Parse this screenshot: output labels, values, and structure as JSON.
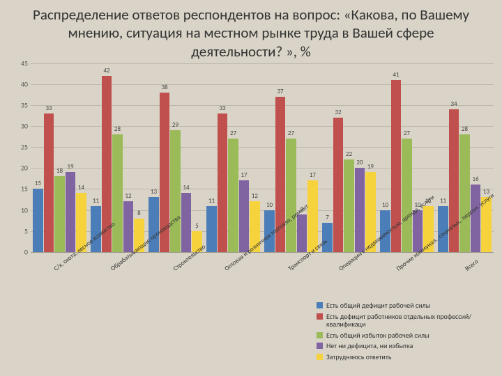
{
  "title": "Распределение ответов респондентов на вопрос: «Какова, по Вашему мнению, ситуация на местном рынке труда в Вашей сфере деятельности? », %",
  "chart": {
    "type": "bar",
    "ylim": [
      0,
      45
    ],
    "ytick_step": 5,
    "background": "#d9d4c7",
    "grid_color": "#bdb8a8",
    "series_colors": [
      "#4b7db8",
      "#c0504d",
      "#9bbb59",
      "#8064a2",
      "#f6d33c"
    ],
    "categories": [
      "С/х, охота, лесное хозяйство",
      "Обрабатывающие производства",
      "Строительство",
      "Оптовая и розничная торговля, ремонт",
      "Транспорт и связь",
      "Операции с недвижимостью, аренда, услуги",
      "Прочие коммунал., социальн., персон. услуги",
      "Всего"
    ],
    "data": [
      [
        15,
        33,
        18,
        19,
        14
      ],
      [
        11,
        42,
        28,
        12,
        8
      ],
      [
        13,
        38,
        29,
        14,
        5
      ],
      [
        11,
        33,
        27,
        17,
        12
      ],
      [
        10,
        37,
        27,
        9,
        17
      ],
      [
        7,
        32,
        22,
        20,
        19
      ],
      [
        10,
        41,
        27,
        10,
        11
      ],
      [
        11,
        34,
        28,
        16,
        13
      ]
    ],
    "legend": [
      "Есть общий дефицит рабочей силы",
      "Есть дефицит работников отдельных профессий/квалификаци",
      "Есть общий избыток рабочей силы",
      "Нет ни дефицита, ни избытка",
      "Затрудняюсь ответить"
    ]
  }
}
